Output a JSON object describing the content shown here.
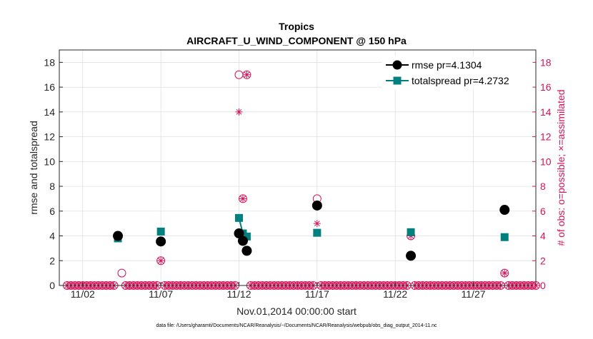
{
  "chart_data": {
    "type": "line",
    "title": "Tropics",
    "subtitle": "AIRCRAFT_U_WIND_COMPONENT @ 150 hPa",
    "xlabel": "Nov.01,2014 00:00:00 start",
    "ylabel_left": "rmse and totalspread",
    "ylabel_right": "# of obs: o=possible; ×=assimilated",
    "xlim": [
      0.5,
      31
    ],
    "ylim": [
      0,
      19
    ],
    "y_ticks": [
      0,
      2,
      4,
      6,
      8,
      10,
      12,
      14,
      16,
      18
    ],
    "x_ticks": [
      {
        "x": 2,
        "label": "11/02"
      },
      {
        "x": 7,
        "label": "11/07"
      },
      {
        "x": 12,
        "label": "11/12"
      },
      {
        "x": 17,
        "label": "11/17"
      },
      {
        "x": 22,
        "label": "11/22"
      },
      {
        "x": 27,
        "label": "11/27"
      }
    ],
    "grid": true,
    "legend_position": "top-right",
    "series": [
      {
        "name": "rmse pr=4.1304",
        "color": "#000000",
        "points": [
          {
            "x": 4.25,
            "y": 4.0
          },
          {
            "x": 7.0,
            "y": 3.55
          },
          {
            "x": 12.0,
            "y": 4.2
          },
          {
            "x": 12.25,
            "y": 3.6
          },
          {
            "x": 12.5,
            "y": 2.8
          },
          {
            "x": 17.0,
            "y": 6.45
          },
          {
            "x": 23.0,
            "y": 2.4
          },
          {
            "x": 29.0,
            "y": 6.1
          }
        ]
      },
      {
        "name": "totalspread pr=4.2732",
        "color": "#00807f",
        "points": [
          {
            "x": 4.25,
            "y": 3.8
          },
          {
            "x": 7.0,
            "y": 4.35
          },
          {
            "x": 12.0,
            "y": 5.45
          },
          {
            "x": 12.25,
            "y": 4.2
          },
          {
            "x": 12.5,
            "y": 3.95
          },
          {
            "x": 17.0,
            "y": 4.25
          },
          {
            "x": 23.0,
            "y": 4.3
          },
          {
            "x": 29.0,
            "y": 3.9
          }
        ],
        "connected": [
          [
            2,
            3
          ],
          [
            3,
            4
          ]
        ]
      }
    ],
    "obs_possible": [
      {
        "x": 4.25,
        "y": 4
      },
      {
        "x": 4.5,
        "y": 1
      },
      {
        "x": 7.0,
        "y": 2
      },
      {
        "x": 12.0,
        "y": 17
      },
      {
        "x": 12.25,
        "y": 7
      },
      {
        "x": 12.5,
        "y": 17
      },
      {
        "x": 17.0,
        "y": 7
      },
      {
        "x": 23.0,
        "y": 4
      },
      {
        "x": 29.0,
        "y": 1
      }
    ],
    "obs_assimilated": [
      {
        "x": 4.25,
        "y": 4
      },
      {
        "x": 7.0,
        "y": 2
      },
      {
        "x": 12.0,
        "y": 14
      },
      {
        "x": 12.25,
        "y": 7
      },
      {
        "x": 12.5,
        "y": 17
      },
      {
        "x": 17.0,
        "y": 5
      },
      {
        "x": 23.0,
        "y": 4
      },
      {
        "x": 29.0,
        "y": 1
      }
    ],
    "zero_obs_step": 0.25,
    "colors": {
      "rmse": "#000000",
      "spread": "#00807f",
      "obs": "#d6125a",
      "grid": "#dcdcdc",
      "axis": "#262626"
    }
  },
  "footnote": "data file: /Users/gharamti/Documents/NCAR/Reanalysis/~/Documents/NCAR/Reanalysis/webpub/obs_diag_output_2014-11.nc"
}
